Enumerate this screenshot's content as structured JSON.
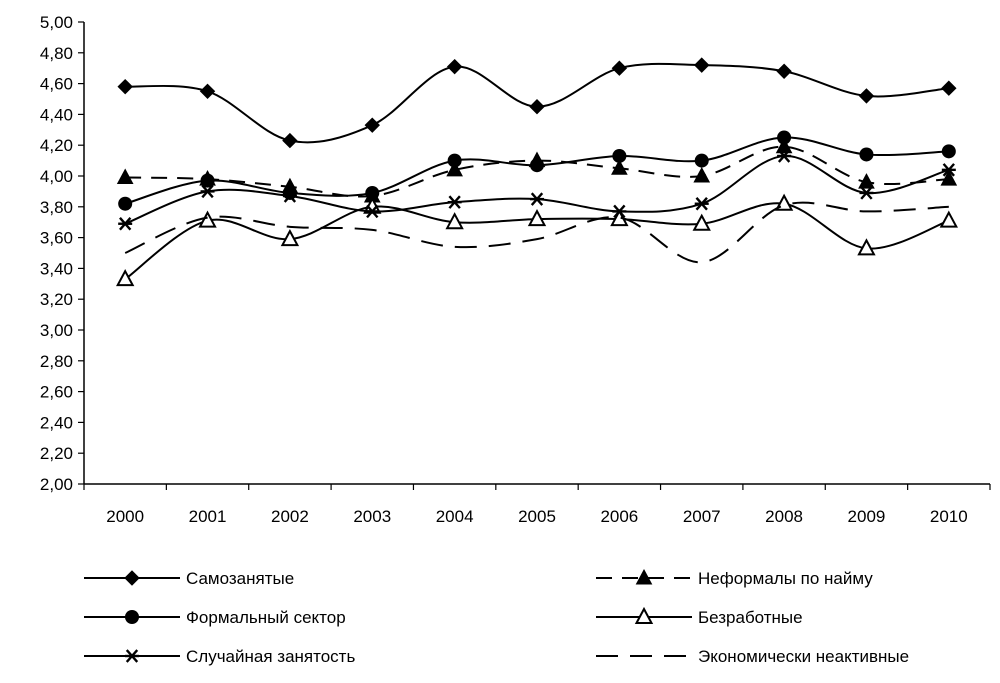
{
  "chart_data": {
    "type": "line",
    "x": [
      "2000",
      "2001",
      "2002",
      "2003",
      "2004",
      "2005",
      "2006",
      "2007",
      "2008",
      "2009",
      "2010"
    ],
    "ylim": [
      2.0,
      5.0
    ],
    "yticks": [
      "2,00",
      "2,20",
      "2,40",
      "2,60",
      "2,80",
      "3,00",
      "3,20",
      "3,40",
      "3,60",
      "3,80",
      "4,00",
      "4,20",
      "4,40",
      "4,60",
      "4,80",
      "5,00"
    ],
    "title": "",
    "xlabel": "",
    "ylabel": "",
    "grid": false,
    "legend_position": "bottom",
    "series": [
      {
        "name": "Самозанятые",
        "marker": "diamond-filled",
        "dash": "solid",
        "values": [
          4.58,
          4.55,
          4.23,
          4.33,
          4.71,
          4.45,
          4.7,
          4.72,
          4.68,
          4.52,
          4.57
        ]
      },
      {
        "name": "Неформалы по найму",
        "marker": "triangle-filled",
        "dash": "dashed",
        "values": [
          3.99,
          3.98,
          3.93,
          3.87,
          4.04,
          4.1,
          4.05,
          4.0,
          4.19,
          3.96,
          3.98
        ]
      },
      {
        "name": "Формальный сектор",
        "marker": "circle-filled",
        "dash": "solid",
        "values": [
          3.82,
          3.97,
          3.89,
          3.89,
          4.1,
          4.07,
          4.13,
          4.1,
          4.25,
          4.14,
          4.16
        ]
      },
      {
        "name": "Безработные",
        "marker": "triangle-open",
        "dash": "solid",
        "values": [
          3.33,
          3.71,
          3.59,
          3.8,
          3.7,
          3.72,
          3.72,
          3.69,
          3.82,
          3.53,
          3.71
        ]
      },
      {
        "name": "Случайная занятость",
        "marker": "asterisk",
        "dash": "solid",
        "values": [
          3.69,
          3.9,
          3.87,
          3.77,
          3.83,
          3.85,
          3.77,
          3.82,
          4.13,
          3.89,
          4.04
        ]
      },
      {
        "name": "Экономически неактивные",
        "marker": "none",
        "dash": "long-dash",
        "values": [
          3.5,
          3.73,
          3.67,
          3.65,
          3.54,
          3.59,
          3.73,
          3.44,
          3.81,
          3.77,
          3.8
        ]
      }
    ]
  }
}
